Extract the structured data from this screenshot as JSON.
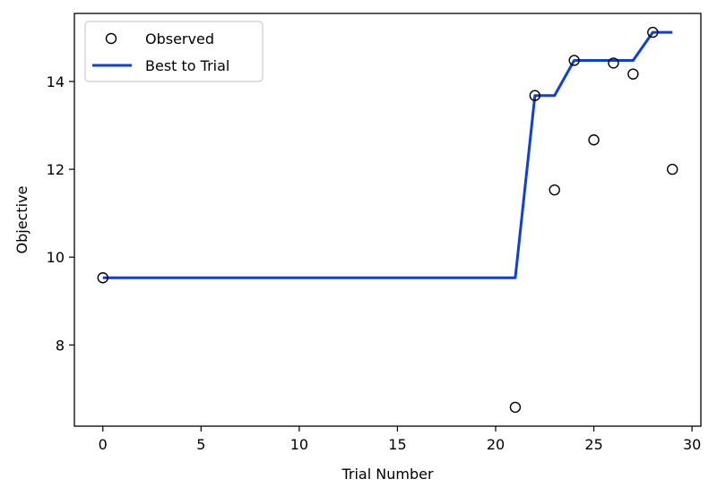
{
  "chart_data": {
    "type": "scatter",
    "xlabel": "Trial Number",
    "ylabel": "Objective",
    "xlim": [
      -1.45,
      30.45
    ],
    "ylim": [
      6.15,
      15.55
    ],
    "x_ticks": [
      0,
      5,
      10,
      15,
      20,
      25,
      30
    ],
    "y_ticks": [
      8,
      10,
      12,
      14
    ],
    "grid": false,
    "legend_placement": "top-left",
    "series": [
      {
        "name": "Observed",
        "kind": "scatter",
        "marker": "hollow-circle",
        "color": "#000000",
        "points": [
          {
            "x": 0,
            "y": 9.53
          },
          {
            "x": 21,
            "y": 6.58
          },
          {
            "x": 22,
            "y": 13.68
          },
          {
            "x": 23,
            "y": 11.53
          },
          {
            "x": 24,
            "y": 14.48
          },
          {
            "x": 25,
            "y": 12.67
          },
          {
            "x": 26,
            "y": 14.42
          },
          {
            "x": 27,
            "y": 14.17
          },
          {
            "x": 28,
            "y": 15.12
          },
          {
            "x": 29,
            "y": 12.0
          }
        ]
      },
      {
        "name": "Best to Trial",
        "kind": "line",
        "color": "#0a3cf0",
        "points": [
          {
            "x": 0,
            "y": 9.53
          },
          {
            "x": 21,
            "y": 9.53
          },
          {
            "x": 22,
            "y": 13.68
          },
          {
            "x": 23,
            "y": 13.68
          },
          {
            "x": 24,
            "y": 14.48
          },
          {
            "x": 25,
            "y": 14.48
          },
          {
            "x": 26,
            "y": 14.48
          },
          {
            "x": 27,
            "y": 14.48
          },
          {
            "x": 28,
            "y": 15.12
          },
          {
            "x": 29,
            "y": 15.12
          }
        ]
      }
    ]
  }
}
